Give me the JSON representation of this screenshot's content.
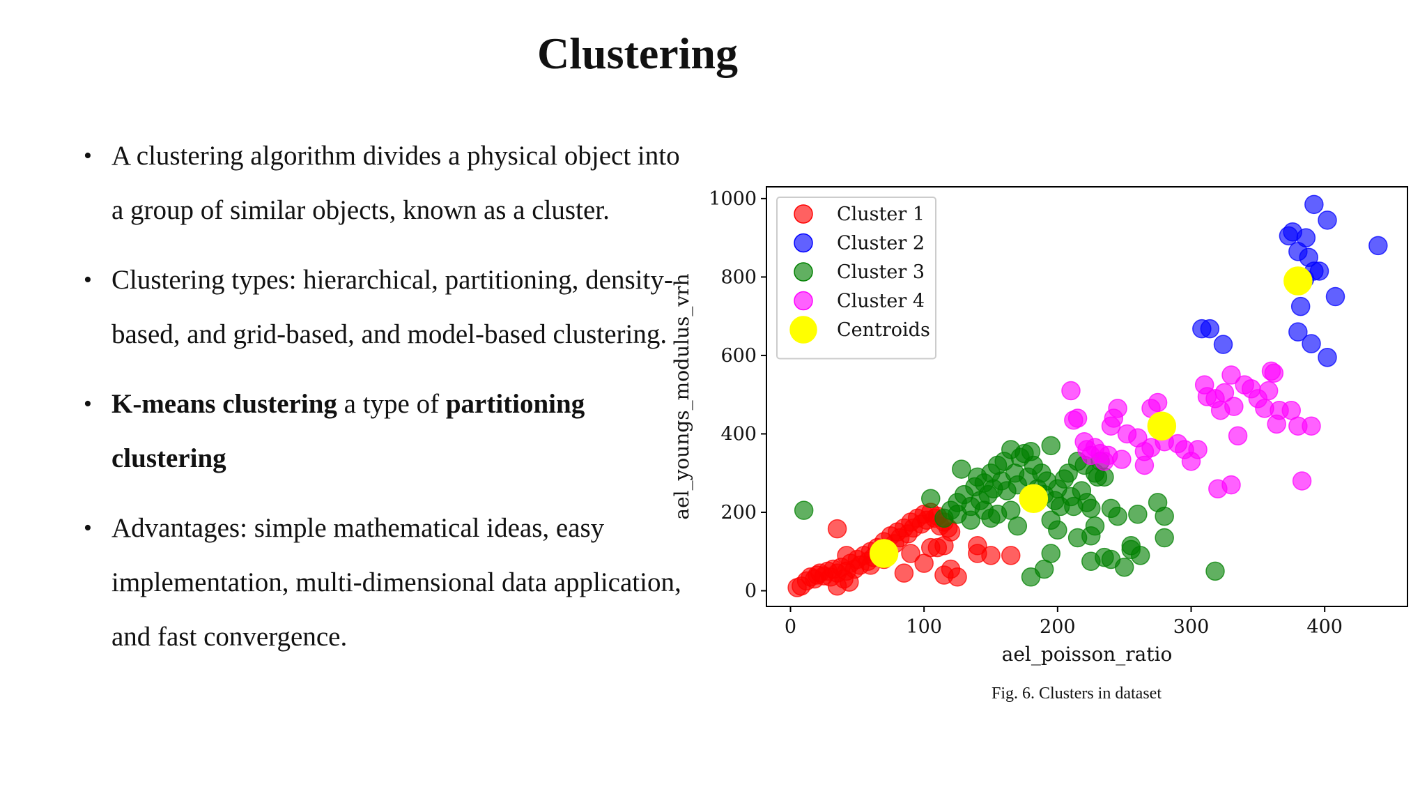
{
  "slide": {
    "title": "Clustering",
    "bullets": [
      {
        "segments": [
          {
            "text": "A clustering algorithm divides a physical object into a group of similar objects, known as a cluster.",
            "bold": false
          }
        ]
      },
      {
        "segments": [
          {
            "text": "Clustering types: hierarchical, partitioning, density-based, and grid-based, and model-based clustering.",
            "bold": false
          }
        ]
      },
      {
        "segments": [
          {
            "text": "K-means clustering",
            "bold": true
          },
          {
            "text": " a type of ",
            "bold": false
          },
          {
            "text": "partitioning clustering",
            "bold": true
          }
        ]
      },
      {
        "segments": [
          {
            "text": "Advantages: simple mathematical ideas, easy implementation, multi-dimensional data application, and fast convergence.",
            "bold": false
          }
        ]
      }
    ],
    "caption": "Fig. 6. Clusters in dataset"
  },
  "chart_data": {
    "type": "scatter",
    "xlabel": "ael_poisson_ratio",
    "ylabel": "ael_youngs_modulus_vrh",
    "xlim": [
      -18,
      462
    ],
    "ylim": [
      -40,
      1030
    ],
    "xticks": [
      0,
      100,
      200,
      300,
      400
    ],
    "yticks": [
      0,
      200,
      400,
      600,
      800,
      1000
    ],
    "grid": false,
    "legend_position": "top-left",
    "series": [
      {
        "name": "Cluster 1",
        "color": "#ff0000",
        "points": [
          [
            5,
            8
          ],
          [
            8,
            12
          ],
          [
            12,
            25
          ],
          [
            15,
            35
          ],
          [
            18,
            30
          ],
          [
            20,
            40
          ],
          [
            22,
            45
          ],
          [
            25,
            38
          ],
          [
            28,
            50
          ],
          [
            30,
            35
          ],
          [
            32,
            55
          ],
          [
            35,
            45
          ],
          [
            35,
            12
          ],
          [
            38,
            60
          ],
          [
            40,
            30
          ],
          [
            42,
            50
          ],
          [
            44,
            22
          ],
          [
            45,
            70
          ],
          [
            48,
            55
          ],
          [
            50,
            80
          ],
          [
            52,
            65
          ],
          [
            55,
            90
          ],
          [
            58,
            75
          ],
          [
            60,
            100
          ],
          [
            62,
            85
          ],
          [
            65,
            110
          ],
          [
            68,
            95
          ],
          [
            70,
            125
          ],
          [
            72,
            105
          ],
          [
            75,
            140
          ],
          [
            78,
            120
          ],
          [
            80,
            150
          ],
          [
            82,
            135
          ],
          [
            85,
            160
          ],
          [
            88,
            145
          ],
          [
            90,
            175
          ],
          [
            92,
            160
          ],
          [
            95,
            185
          ],
          [
            98,
            170
          ],
          [
            100,
            195
          ],
          [
            102,
            180
          ],
          [
            105,
            200
          ],
          [
            108,
            185
          ],
          [
            110,
            190
          ],
          [
            112,
            165
          ],
          [
            115,
            175
          ],
          [
            118,
            160
          ],
          [
            120,
            150
          ],
          [
            35,
            158
          ],
          [
            42,
            90
          ],
          [
            60,
            65
          ],
          [
            70,
            80
          ],
          [
            85,
            45
          ],
          [
            90,
            95
          ],
          [
            100,
            70
          ],
          [
            105,
            110
          ],
          [
            110,
            110
          ],
          [
            115,
            115
          ],
          [
            115,
            40
          ],
          [
            120,
            55
          ],
          [
            140,
            115
          ],
          [
            140,
            95
          ],
          [
            150,
            90
          ],
          [
            165,
            90
          ],
          [
            125,
            35
          ]
        ]
      },
      {
        "name": "Cluster 2",
        "color": "#0000ff",
        "points": [
          [
            373,
            905
          ],
          [
            376,
            915
          ],
          [
            380,
            865
          ],
          [
            386,
            900
          ],
          [
            392,
            985
          ],
          [
            402,
            945
          ],
          [
            440,
            880
          ],
          [
            388,
            850
          ],
          [
            392,
            815
          ],
          [
            396,
            815
          ],
          [
            385,
            795
          ],
          [
            382,
            725
          ],
          [
            408,
            750
          ],
          [
            380,
            660
          ],
          [
            390,
            630
          ],
          [
            402,
            595
          ],
          [
            308,
            668
          ],
          [
            314,
            668
          ],
          [
            324,
            628
          ]
        ]
      },
      {
        "name": "Cluster 3",
        "color": "#008000",
        "points": [
          [
            10,
            205
          ],
          [
            105,
            235
          ],
          [
            120,
            205
          ],
          [
            125,
            225
          ],
          [
            128,
            310
          ],
          [
            130,
            245
          ],
          [
            135,
            215
          ],
          [
            138,
            265
          ],
          [
            140,
            290
          ],
          [
            142,
            230
          ],
          [
            145,
            275
          ],
          [
            148,
            245
          ],
          [
            150,
            300
          ],
          [
            152,
            260
          ],
          [
            155,
            320
          ],
          [
            158,
            280
          ],
          [
            160,
            330
          ],
          [
            162,
            255
          ],
          [
            165,
            360
          ],
          [
            168,
            300
          ],
          [
            170,
            270
          ],
          [
            172,
            340
          ],
          [
            175,
            350
          ],
          [
            178,
            290
          ],
          [
            180,
            355
          ],
          [
            182,
            320
          ],
          [
            185,
            260
          ],
          [
            188,
            300
          ],
          [
            190,
            245
          ],
          [
            192,
            280
          ],
          [
            195,
            370
          ],
          [
            198,
            230
          ],
          [
            200,
            260
          ],
          [
            202,
            215
          ],
          [
            205,
            285
          ],
          [
            208,
            300
          ],
          [
            210,
            240
          ],
          [
            212,
            215
          ],
          [
            215,
            330
          ],
          [
            218,
            255
          ],
          [
            220,
            320
          ],
          [
            222,
            225
          ],
          [
            225,
            210
          ],
          [
            228,
            300
          ],
          [
            230,
            290
          ],
          [
            232,
            330
          ],
          [
            235,
            290
          ],
          [
            240,
            210
          ],
          [
            245,
            190
          ],
          [
            260,
            195
          ],
          [
            275,
            225
          ],
          [
            280,
            190
          ],
          [
            195,
            180
          ],
          [
            200,
            155
          ],
          [
            215,
            135
          ],
          [
            225,
            140
          ],
          [
            228,
            165
          ],
          [
            235,
            85
          ],
          [
            240,
            80
          ],
          [
            250,
            60
          ],
          [
            255,
            115
          ],
          [
            262,
            90
          ],
          [
            280,
            135
          ],
          [
            195,
            95
          ],
          [
            190,
            55
          ],
          [
            180,
            35
          ],
          [
            225,
            75
          ],
          [
            318,
            50
          ],
          [
            255,
            105
          ],
          [
            115,
            185
          ],
          [
            125,
            195
          ],
          [
            145,
            205
          ],
          [
            150,
            185
          ],
          [
            170,
            165
          ],
          [
            165,
            205
          ],
          [
            155,
            195
          ],
          [
            135,
            180
          ]
        ]
      },
      {
        "name": "Cluster 4",
        "color": "#ff00ff",
        "points": [
          [
            210,
            510
          ],
          [
            212,
            435
          ],
          [
            215,
            440
          ],
          [
            220,
            380
          ],
          [
            222,
            360
          ],
          [
            225,
            345
          ],
          [
            228,
            365
          ],
          [
            232,
            350
          ],
          [
            235,
            330
          ],
          [
            238,
            345
          ],
          [
            240,
            420
          ],
          [
            242,
            440
          ],
          [
            245,
            465
          ],
          [
            248,
            335
          ],
          [
            252,
            400
          ],
          [
            260,
            390
          ],
          [
            265,
            355
          ],
          [
            265,
            320
          ],
          [
            270,
            365
          ],
          [
            270,
            465
          ],
          [
            275,
            480
          ],
          [
            280,
            380
          ],
          [
            290,
            375
          ],
          [
            295,
            360
          ],
          [
            300,
            330
          ],
          [
            305,
            360
          ],
          [
            310,
            525
          ],
          [
            312,
            495
          ],
          [
            318,
            490
          ],
          [
            322,
            460
          ],
          [
            325,
            505
          ],
          [
            330,
            550
          ],
          [
            332,
            470
          ],
          [
            335,
            395
          ],
          [
            340,
            525
          ],
          [
            345,
            515
          ],
          [
            350,
            490
          ],
          [
            355,
            465
          ],
          [
            358,
            510
          ],
          [
            360,
            560
          ],
          [
            362,
            555
          ],
          [
            364,
            425
          ],
          [
            366,
            460
          ],
          [
            375,
            460
          ],
          [
            380,
            420
          ],
          [
            383,
            280
          ],
          [
            390,
            420
          ],
          [
            320,
            260
          ],
          [
            330,
            270
          ]
        ]
      },
      {
        "name": "Centroids",
        "color": "#ffff00",
        "points": [
          [
            70,
            95
          ],
          [
            182,
            235
          ],
          [
            278,
            420
          ],
          [
            380,
            790
          ]
        ]
      }
    ]
  }
}
